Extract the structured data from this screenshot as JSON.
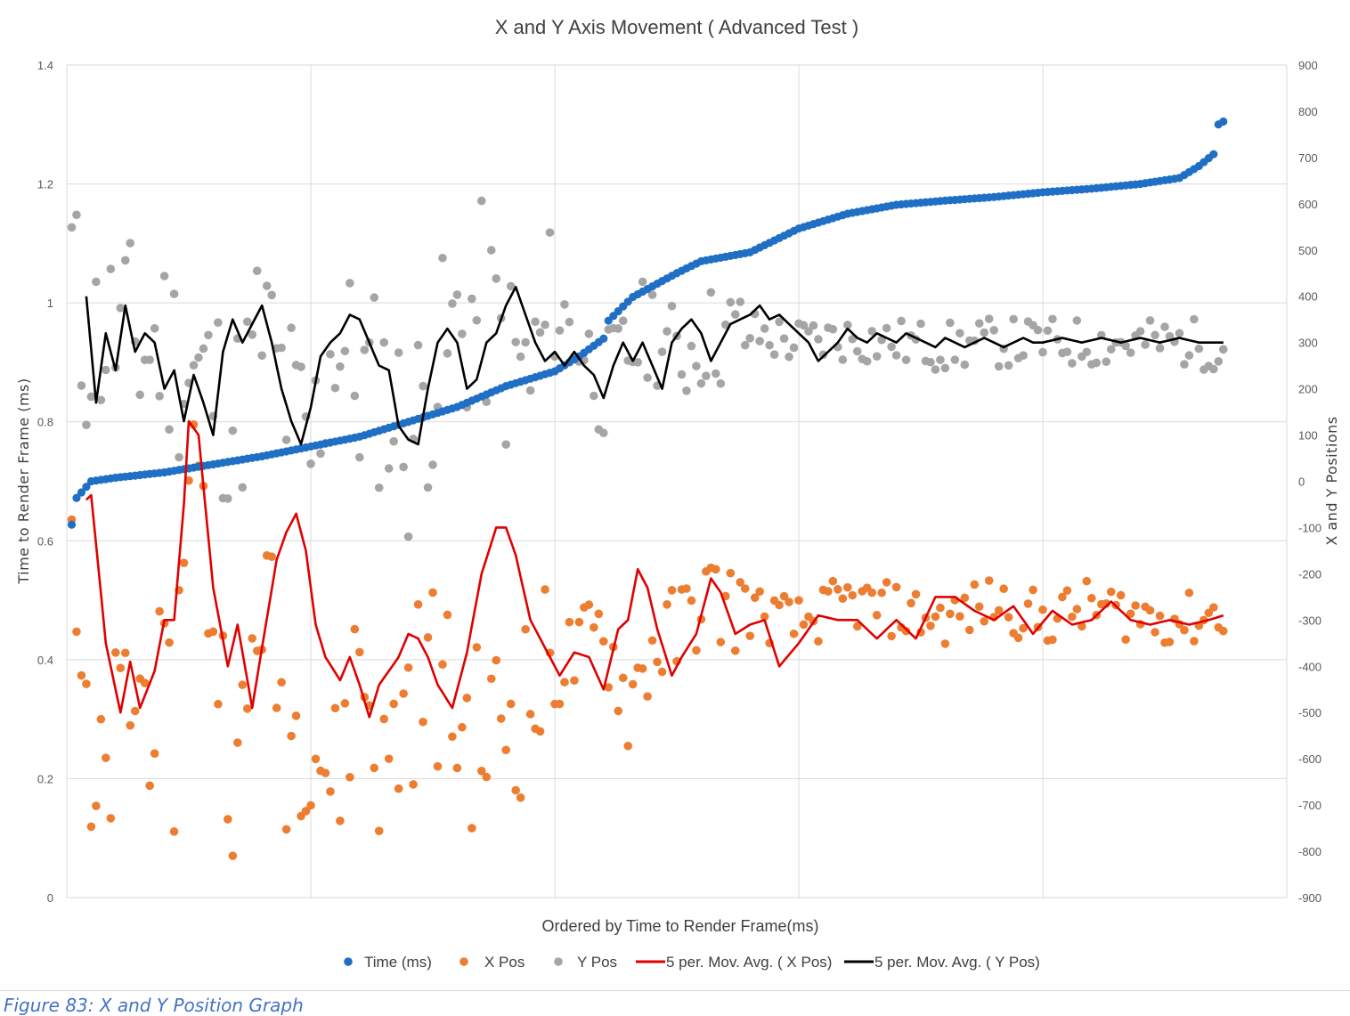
{
  "chart_data": {
    "type": "scatter",
    "title": "X and Y Axis Movement ( Advanced Test )",
    "xlabel": "Ordered by Time to Render Frame(ms)",
    "ylabel": "Time to Render Frame (ms)",
    "y2label": "X and Y Positions",
    "xlim": [
      0,
      250
    ],
    "ylim": [
      0,
      1.4
    ],
    "y2lim": [
      -900,
      900
    ],
    "y_ticks": [
      "0",
      "0.2",
      "0.4",
      "0.6",
      "0.8",
      "1",
      "1.2",
      "1.4"
    ],
    "y2_ticks": [
      "-900",
      "-800",
      "-700",
      "-600",
      "-500",
      "-400",
      "-300",
      "-200",
      "-100",
      "0",
      "100",
      "200",
      "300",
      "400",
      "500",
      "600",
      "700",
      "800",
      "900"
    ],
    "grid": true,
    "legend_position": "bottom",
    "legend": [
      "Time (ms)",
      "X Pos",
      "Y Pos",
      "5 per. Mov. Avg. ( X Pos)",
      "5 per. Mov. Avg. ( Y Pos)"
    ],
    "colors": {
      "time": "#1f6fc5",
      "xpos": "#ed7d31",
      "ypos": "#a5a5a5",
      "xavg": "#e00000",
      "yavg": "#000000",
      "grid": "#d9d9d9"
    },
    "time_anchors": [
      [
        1,
        0.627
      ],
      [
        2,
        0.672
      ],
      [
        5,
        0.7
      ],
      [
        10,
        0.706
      ],
      [
        20,
        0.715
      ],
      [
        40,
        0.742
      ],
      [
        60,
        0.775
      ],
      [
        80,
        0.825
      ],
      [
        90,
        0.86
      ],
      [
        100,
        0.885
      ],
      [
        105,
        0.91
      ],
      [
        110,
        0.94
      ],
      [
        111,
        0.97
      ],
      [
        116,
        1.01
      ],
      [
        125,
        1.05
      ],
      [
        130,
        1.07
      ],
      [
        140,
        1.085
      ],
      [
        150,
        1.125
      ],
      [
        160,
        1.15
      ],
      [
        170,
        1.165
      ],
      [
        180,
        1.172
      ],
      [
        190,
        1.178
      ],
      [
        200,
        1.186
      ],
      [
        210,
        1.192
      ],
      [
        220,
        1.2
      ],
      [
        228,
        1.21
      ],
      [
        232,
        1.23
      ],
      [
        235,
        1.25
      ],
      [
        236,
        1.3
      ],
      [
        237,
        1.305
      ]
    ],
    "x_pos_anchors": [
      [
        1,
        -40
      ],
      [
        5,
        -790
      ],
      [
        12,
        -470
      ],
      [
        18,
        -460
      ],
      [
        22,
        -570
      ],
      [
        25,
        140
      ],
      [
        30,
        -290
      ],
      [
        35,
        -680
      ],
      [
        40,
        -210
      ],
      [
        45,
        -550
      ],
      [
        50,
        -500
      ],
      [
        55,
        -670
      ],
      [
        60,
        -360
      ],
      [
        65,
        -650
      ],
      [
        70,
        -460
      ],
      [
        75,
        -400
      ],
      [
        80,
        -520
      ],
      [
        85,
        -560
      ],
      [
        90,
        -500
      ],
      [
        95,
        -470
      ],
      [
        100,
        -400
      ],
      [
        105,
        -380
      ],
      [
        110,
        -320
      ],
      [
        115,
        -480
      ],
      [
        120,
        -360
      ],
      [
        125,
        -330
      ],
      [
        130,
        -250
      ],
      [
        140,
        -280
      ],
      [
        150,
        -310
      ],
      [
        160,
        -260
      ],
      [
        170,
        -280
      ],
      [
        180,
        -300
      ],
      [
        190,
        -260
      ],
      [
        200,
        -300
      ],
      [
        210,
        -270
      ],
      [
        220,
        -290
      ],
      [
        230,
        -300
      ],
      [
        237,
        -280
      ]
    ],
    "y_pos_anchors": [
      [
        1,
        480
      ],
      [
        3,
        300
      ],
      [
        8,
        320
      ],
      [
        12,
        320
      ],
      [
        15,
        280
      ],
      [
        20,
        300
      ],
      [
        25,
        240
      ],
      [
        30,
        200
      ],
      [
        35,
        140
      ],
      [
        40,
        330
      ],
      [
        45,
        180
      ],
      [
        50,
        50
      ],
      [
        55,
        330
      ],
      [
        60,
        200
      ],
      [
        65,
        200
      ],
      [
        70,
        80
      ],
      [
        75,
        230
      ],
      [
        80,
        320
      ],
      [
        85,
        380
      ],
      [
        90,
        270
      ],
      [
        95,
        220
      ],
      [
        100,
        370
      ],
      [
        105,
        310
      ],
      [
        110,
        200
      ],
      [
        115,
        280
      ],
      [
        120,
        340
      ],
      [
        125,
        260
      ],
      [
        130,
        310
      ],
      [
        140,
        320
      ],
      [
        150,
        300
      ],
      [
        160,
        310
      ],
      [
        170,
        300
      ],
      [
        180,
        290
      ],
      [
        190,
        300
      ],
      [
        200,
        300
      ],
      [
        210,
        300
      ],
      [
        220,
        300
      ],
      [
        230,
        300
      ],
      [
        237,
        290
      ]
    ],
    "x_avg_anchors": [
      [
        4,
        -40
      ],
      [
        5,
        -30
      ],
      [
        8,
        -350
      ],
      [
        11,
        -500
      ],
      [
        13,
        -390
      ],
      [
        15,
        -490
      ],
      [
        18,
        -410
      ],
      [
        20,
        -300
      ],
      [
        22,
        -300
      ],
      [
        24,
        -50
      ],
      [
        25,
        130
      ],
      [
        27,
        100
      ],
      [
        30,
        -230
      ],
      [
        33,
        -400
      ],
      [
        35,
        -310
      ],
      [
        38,
        -490
      ],
      [
        40,
        -360
      ],
      [
        43,
        -170
      ],
      [
        45,
        -110
      ],
      [
        47,
        -70
      ],
      [
        49,
        -150
      ],
      [
        51,
        -310
      ],
      [
        53,
        -380
      ],
      [
        56,
        -430
      ],
      [
        58,
        -380
      ],
      [
        60,
        -440
      ],
      [
        62,
        -510
      ],
      [
        64,
        -440
      ],
      [
        66,
        -410
      ],
      [
        68,
        -380
      ],
      [
        70,
        -330
      ],
      [
        72,
        -340
      ],
      [
        74,
        -380
      ],
      [
        76,
        -440
      ],
      [
        79,
        -490
      ],
      [
        82,
        -370
      ],
      [
        85,
        -200
      ],
      [
        88,
        -100
      ],
      [
        90,
        -100
      ],
      [
        92,
        -160
      ],
      [
        95,
        -300
      ],
      [
        98,
        -360
      ],
      [
        101,
        -420
      ],
      [
        104,
        -370
      ],
      [
        107,
        -380
      ],
      [
        110,
        -450
      ],
      [
        113,
        -320
      ],
      [
        115,
        -300
      ],
      [
        117,
        -190
      ],
      [
        119,
        -230
      ],
      [
        121,
        -320
      ],
      [
        124,
        -420
      ],
      [
        126,
        -380
      ],
      [
        129,
        -330
      ],
      [
        132,
        -210
      ],
      [
        134,
        -240
      ],
      [
        137,
        -330
      ],
      [
        140,
        -310
      ],
      [
        143,
        -300
      ],
      [
        146,
        -400
      ],
      [
        150,
        -350
      ],
      [
        154,
        -290
      ],
      [
        158,
        -300
      ],
      [
        162,
        -300
      ],
      [
        166,
        -340
      ],
      [
        170,
        -300
      ],
      [
        174,
        -340
      ],
      [
        178,
        -250
      ],
      [
        182,
        -250
      ],
      [
        186,
        -280
      ],
      [
        190,
        -300
      ],
      [
        194,
        -270
      ],
      [
        198,
        -330
      ],
      [
        202,
        -280
      ],
      [
        206,
        -310
      ],
      [
        210,
        -300
      ],
      [
        214,
        -260
      ],
      [
        218,
        -300
      ],
      [
        222,
        -310
      ],
      [
        226,
        -300
      ],
      [
        230,
        -310
      ],
      [
        234,
        -300
      ],
      [
        237,
        -290
      ]
    ],
    "y_avg_anchors": [
      [
        4,
        400
      ],
      [
        6,
        170
      ],
      [
        8,
        320
      ],
      [
        10,
        240
      ],
      [
        12,
        380
      ],
      [
        14,
        280
      ],
      [
        16,
        320
      ],
      [
        18,
        300
      ],
      [
        20,
        200
      ],
      [
        22,
        240
      ],
      [
        24,
        130
      ],
      [
        26,
        230
      ],
      [
        28,
        170
      ],
      [
        30,
        100
      ],
      [
        32,
        280
      ],
      [
        34,
        350
      ],
      [
        36,
        300
      ],
      [
        38,
        340
      ],
      [
        40,
        380
      ],
      [
        42,
        300
      ],
      [
        44,
        200
      ],
      [
        46,
        130
      ],
      [
        48,
        80
      ],
      [
        50,
        160
      ],
      [
        52,
        270
      ],
      [
        54,
        300
      ],
      [
        56,
        320
      ],
      [
        58,
        360
      ],
      [
        60,
        350
      ],
      [
        62,
        300
      ],
      [
        64,
        250
      ],
      [
        66,
        240
      ],
      [
        68,
        120
      ],
      [
        70,
        90
      ],
      [
        72,
        80
      ],
      [
        74,
        200
      ],
      [
        76,
        300
      ],
      [
        78,
        330
      ],
      [
        80,
        300
      ],
      [
        82,
        200
      ],
      [
        84,
        220
      ],
      [
        86,
        300
      ],
      [
        88,
        320
      ],
      [
        90,
        380
      ],
      [
        92,
        420
      ],
      [
        94,
        360
      ],
      [
        96,
        300
      ],
      [
        98,
        260
      ],
      [
        100,
        280
      ],
      [
        102,
        250
      ],
      [
        104,
        280
      ],
      [
        106,
        250
      ],
      [
        108,
        230
      ],
      [
        110,
        180
      ],
      [
        112,
        250
      ],
      [
        114,
        300
      ],
      [
        116,
        260
      ],
      [
        118,
        300
      ],
      [
        120,
        250
      ],
      [
        122,
        200
      ],
      [
        124,
        300
      ],
      [
        126,
        330
      ],
      [
        128,
        350
      ],
      [
        130,
        320
      ],
      [
        132,
        260
      ],
      [
        134,
        300
      ],
      [
        136,
        340
      ],
      [
        138,
        350
      ],
      [
        140,
        360
      ],
      [
        142,
        380
      ],
      [
        144,
        350
      ],
      [
        146,
        360
      ],
      [
        148,
        340
      ],
      [
        150,
        320
      ],
      [
        152,
        300
      ],
      [
        154,
        260
      ],
      [
        156,
        280
      ],
      [
        158,
        300
      ],
      [
        160,
        330
      ],
      [
        162,
        310
      ],
      [
        164,
        300
      ],
      [
        166,
        320
      ],
      [
        168,
        310
      ],
      [
        170,
        300
      ],
      [
        172,
        320
      ],
      [
        174,
        310
      ],
      [
        176,
        300
      ],
      [
        178,
        290
      ],
      [
        180,
        310
      ],
      [
        182,
        300
      ],
      [
        184,
        290
      ],
      [
        186,
        300
      ],
      [
        188,
        310
      ],
      [
        190,
        300
      ],
      [
        192,
        290
      ],
      [
        194,
        300
      ],
      [
        196,
        310
      ],
      [
        198,
        300
      ],
      [
        200,
        300
      ],
      [
        204,
        310
      ],
      [
        208,
        300
      ],
      [
        212,
        310
      ],
      [
        216,
        300
      ],
      [
        220,
        310
      ],
      [
        224,
        300
      ],
      [
        228,
        310
      ],
      [
        232,
        300
      ],
      [
        237,
        300
      ]
    ]
  },
  "caption": "Figure 83: X and Y Position Graph"
}
